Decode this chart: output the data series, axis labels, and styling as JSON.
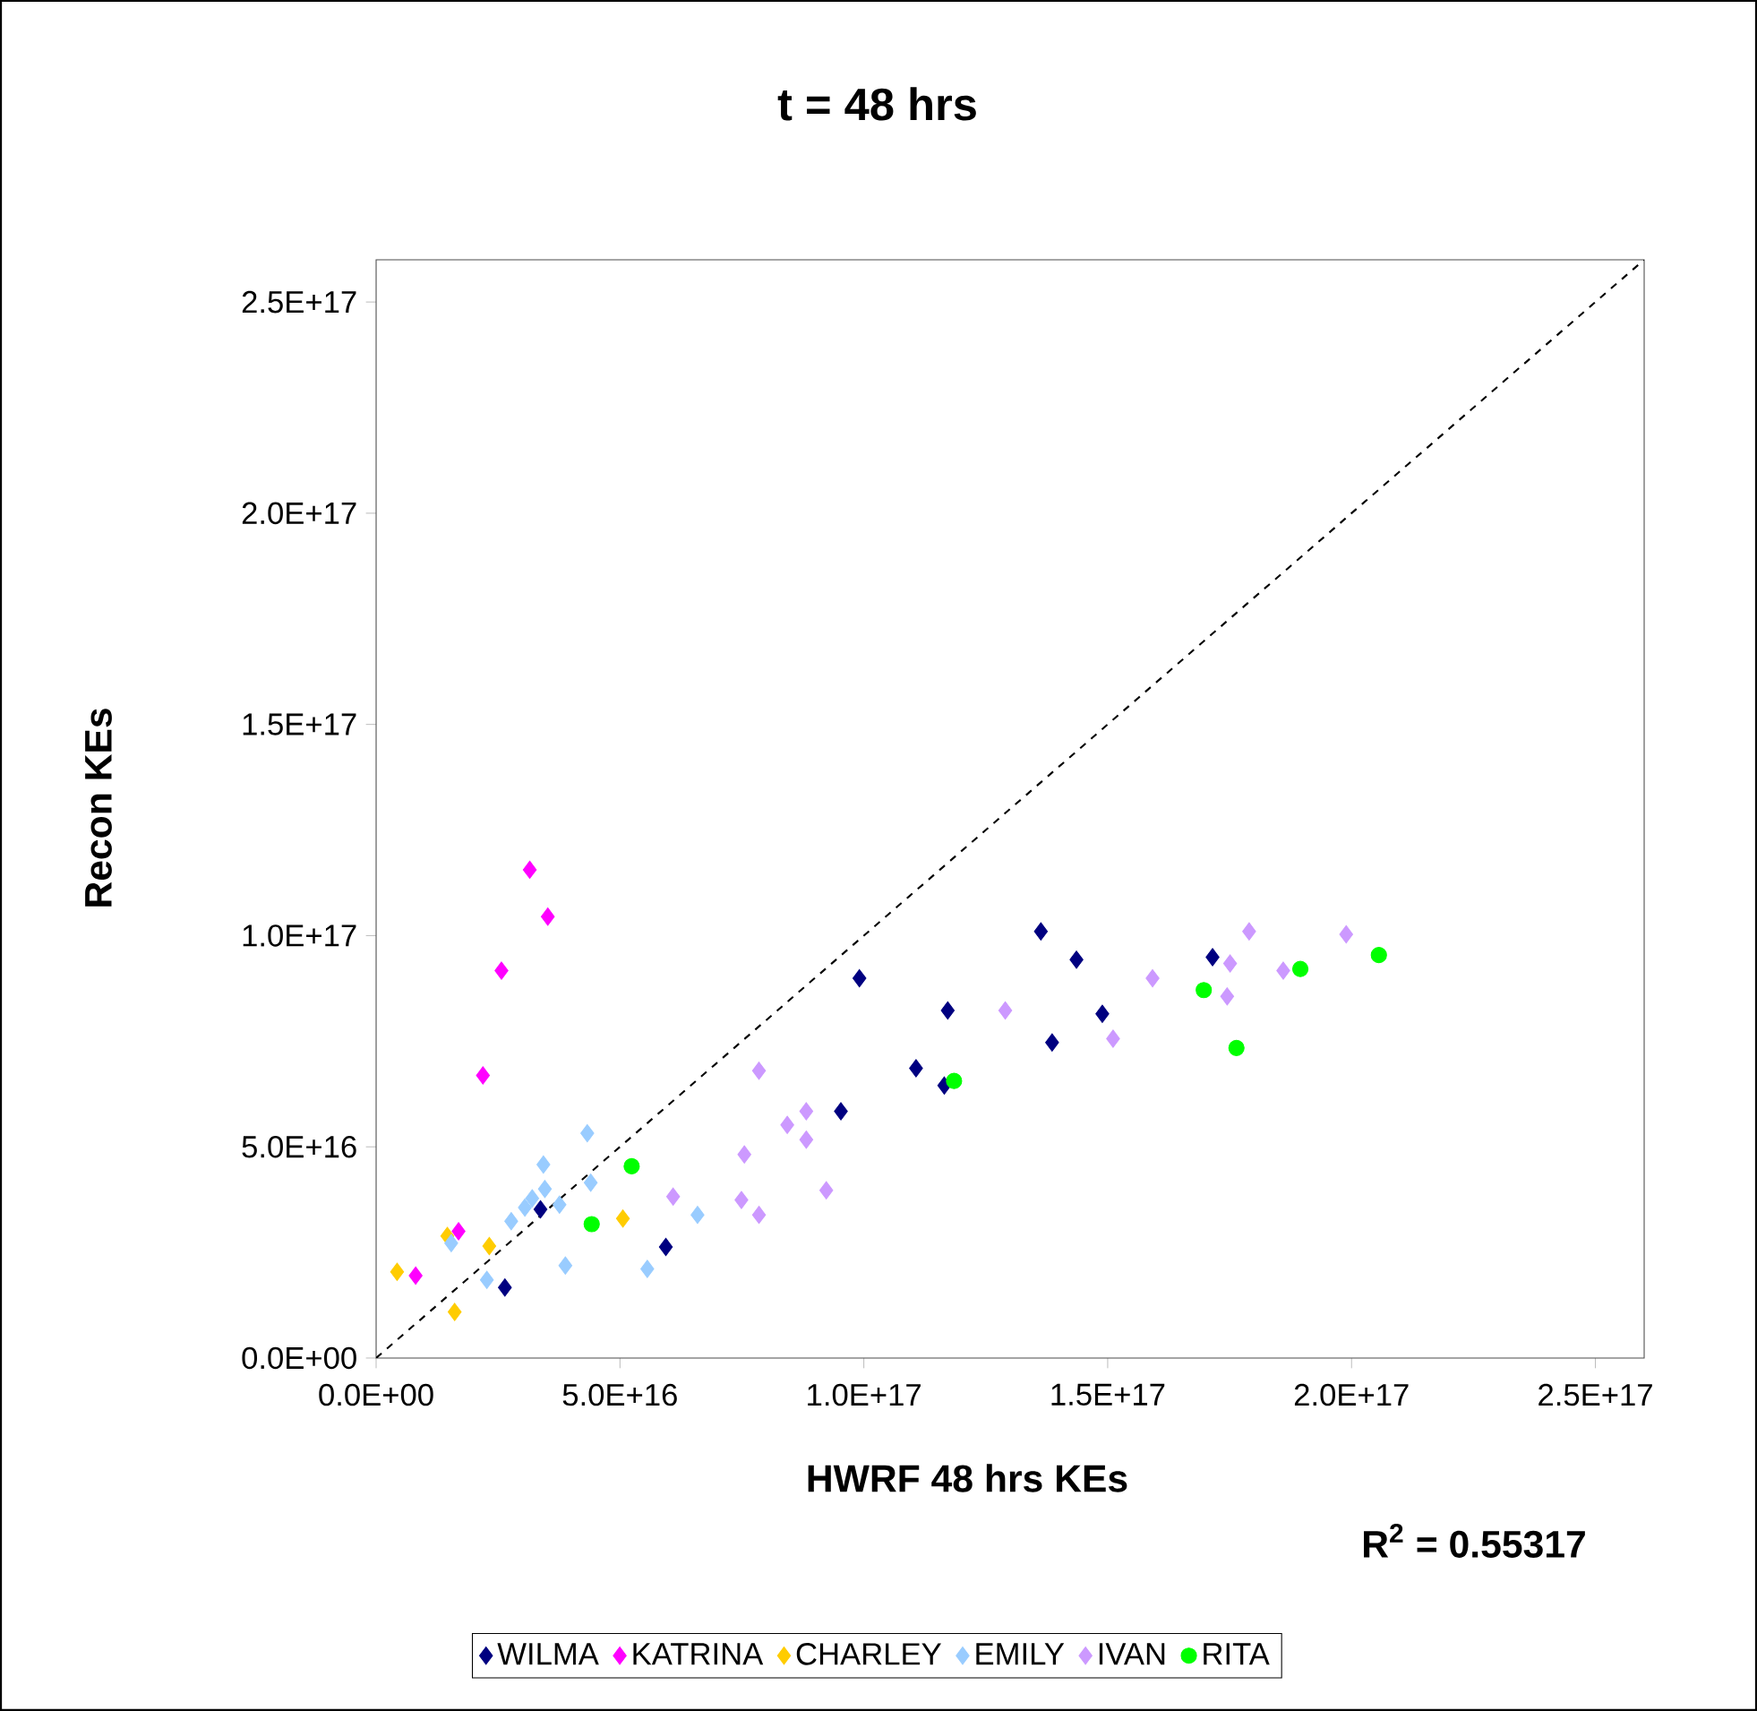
{
  "chart_data": {
    "type": "scatter",
    "title": "t = 48 hrs",
    "xlabel": "HWRF 48 hrs KEs",
    "ylabel": "Recon KEs",
    "annotations": [
      "R$^{2}$ = 0.55317"
    ],
    "xlim": [
      0,
      2.6e+17
    ],
    "ylim": [
      0,
      2.6e+17
    ],
    "xticks": [
      {
        "value": 0,
        "label": "0.0E+00"
      },
      {
        "value": 5e+16,
        "label": "5.0E+16"
      },
      {
        "value": 1e+17,
        "label": "1.0E+17"
      },
      {
        "value": 1.5e+17,
        "label": "1.5E+17"
      },
      {
        "value": 2e+17,
        "label": "2.0E+17"
      },
      {
        "value": 2.5e+17,
        "label": "2.5E+17"
      }
    ],
    "yticks": [
      {
        "value": 0,
        "label": "0.0E+00"
      },
      {
        "value": 5e+16,
        "label": "5.0E+16"
      },
      {
        "value": 1e+17,
        "label": "1.0E+17"
      },
      {
        "value": 1.5e+17,
        "label": "1.5E+17"
      },
      {
        "value": 2e+17,
        "label": "2.0E+17"
      },
      {
        "value": 2.5e+17,
        "label": "2.5E+17"
      }
    ],
    "grid": false,
    "legend": "bottom",
    "marker": "diamond",
    "series": [
      {
        "name": "WILMA",
        "color": "#000080",
        "x": [
          2.64e+16,
          3.37e+16,
          5.94e+16,
          9.53e+16,
          9.91e+16,
          1.107e+17,
          1.165e+17,
          1.172e+17,
          1.363e+17,
          1.386e+17,
          1.436e+17,
          1.489e+17,
          1.715e+17
        ],
        "values": [
          1.67e+16,
          3.52e+16,
          2.63e+16,
          5.84e+16,
          8.99e+16,
          6.86e+16,
          6.45e+16,
          8.23e+16,
          1.01e+17,
          7.47e+16,
          9.43e+16,
          8.15e+16,
          9.49e+16
        ]
      },
      {
        "name": "KATRINA",
        "color": "#ff00ff",
        "x": [
          8100000000000000.0,
          1.69e+16,
          2.19e+16,
          2.57e+16,
          3.15e+16,
          3.52e+16
        ],
        "values": [
          1.95e+16,
          3e+16,
          6.69e+16,
          9.17e+16,
          1.156e+17,
          1.045e+17
        ]
      },
      {
        "name": "CHARLEY",
        "color": "#ffcc00",
        "x": [
          4300000000000000.0,
          1.46e+16,
          1.61e+16,
          2.32e+16,
          5.06e+16
        ],
        "values": [
          2.04e+16,
          2.89e+16,
          1.09e+16,
          2.65e+16,
          3.3e+16
        ]
      },
      {
        "name": "EMILY",
        "color": "#99ccff",
        "x": [
          1.54e+16,
          2.27e+16,
          2.77e+16,
          3.05e+16,
          3.2e+16,
          3.46e+16,
          3.43e+16,
          3.76e+16,
          3.88e+16,
          4.33e+16,
          4.4e+16,
          5.56e+16,
          6.59e+16
        ],
        "values": [
          2.72e+16,
          1.85e+16,
          3.24e+16,
          3.56e+16,
          3.78e+16,
          4e+16,
          4.58e+16,
          3.63e+16,
          2.19e+16,
          5.32e+16,
          4.15e+16,
          2.11e+16,
          3.39e+16
        ]
      },
      {
        "name": "IVAN",
        "color": "#cc99ff",
        "x": [
          6.09e+16,
          7.49e+16,
          7.55e+16,
          7.85e+16,
          7.85e+16,
          8.43e+16,
          8.82e+16,
          8.82e+16,
          9.23e+16,
          1.29e+17,
          1.511e+17,
          1.592e+17,
          1.745e+17,
          1.751e+17,
          1.79e+17,
          1.86e+17,
          1.989e+17
        ],
        "values": [
          3.82e+16,
          3.74e+16,
          4.82e+16,
          3.39e+16,
          6.8e+16,
          5.52e+16,
          5.84e+16,
          5.17e+16,
          3.97e+16,
          8.23e+16,
          7.56e+16,
          8.99e+16,
          8.56e+16,
          9.34e+16,
          1.01e+17,
          9.17e+16,
          1.003e+17
        ]
      },
      {
        "name": "RITA",
        "color": "#00ff00",
        "marker": "circle",
        "x": [
          4.42e+16,
          5.24e+16,
          1.185e+17,
          1.697e+17,
          1.764e+17,
          1.895e+17,
          2.056e+17
        ],
        "values": [
          3.17e+16,
          4.54e+16,
          6.56e+16,
          8.71e+16,
          7.34e+16,
          9.21e+16,
          9.54e+16
        ]
      },
      {
        "type": "line",
        "color": "#000000",
        "line_style": "dashed",
        "marker": "none",
        "x": [
          0,
          2.6e+17
        ],
        "values": [
          0,
          2.6e+17
        ]
      }
    ]
  }
}
